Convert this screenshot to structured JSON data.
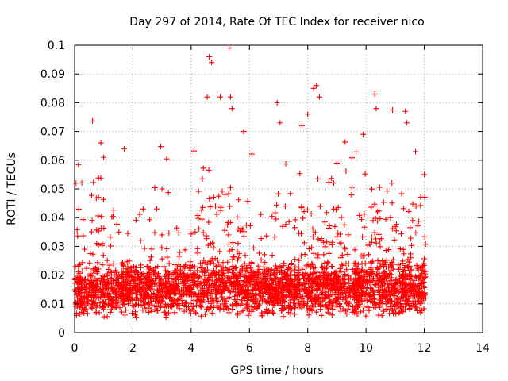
{
  "chart_data": {
    "type": "scatter",
    "title": "Day 297 of 2014, Rate Of TEC Index for receiver nico",
    "xlabel": "GPS time / hours",
    "ylabel": "ROTI / TECUs",
    "xlim": [
      0,
      14
    ],
    "ylim": [
      0,
      0.1
    ],
    "xticks": [
      0,
      2,
      4,
      6,
      8,
      10,
      12,
      14
    ],
    "yticks": [
      0,
      0.01,
      0.02,
      0.03,
      0.04,
      0.05,
      0.06,
      0.07,
      0.08,
      0.09,
      0.1
    ],
    "xtick_labels": [
      "0",
      "2",
      "4",
      "6",
      "8",
      "10",
      "12",
      "14"
    ],
    "ytick_labels": [
      "0",
      "0.01",
      "0.02",
      "0.03",
      "0.04",
      "0.05",
      "0.06",
      "0.07",
      "0.08",
      "0.09",
      "0.1"
    ],
    "grid": true,
    "marker": "+",
    "color": "#ff0000",
    "series": [
      {
        "name": "ROTI",
        "x_range": [
          0,
          12.05
        ],
        "bulk_range": [
          0.005,
          0.025
        ],
        "notable_points": [
          {
            "x": 0.05,
            "y": 0.052
          },
          {
            "x": 0.9,
            "y": 0.066
          },
          {
            "x": 1.0,
            "y": 0.061
          },
          {
            "x": 1.7,
            "y": 0.064
          },
          {
            "x": 2.35,
            "y": 0.043
          },
          {
            "x": 3.0,
            "y": 0.05
          },
          {
            "x": 4.55,
            "y": 0.082
          },
          {
            "x": 4.62,
            "y": 0.096
          },
          {
            "x": 4.7,
            "y": 0.094
          },
          {
            "x": 5.0,
            "y": 0.082
          },
          {
            "x": 5.3,
            "y": 0.099
          },
          {
            "x": 5.35,
            "y": 0.082
          },
          {
            "x": 5.4,
            "y": 0.078
          },
          {
            "x": 5.8,
            "y": 0.07
          },
          {
            "x": 6.95,
            "y": 0.08
          },
          {
            "x": 7.05,
            "y": 0.073
          },
          {
            "x": 7.8,
            "y": 0.072
          },
          {
            "x": 8.2,
            "y": 0.085
          },
          {
            "x": 8.3,
            "y": 0.086
          },
          {
            "x": 8.4,
            "y": 0.082
          },
          {
            "x": 8.0,
            "y": 0.076
          },
          {
            "x": 9.0,
            "y": 0.059
          },
          {
            "x": 9.9,
            "y": 0.069
          },
          {
            "x": 10.3,
            "y": 0.083
          },
          {
            "x": 10.35,
            "y": 0.078
          },
          {
            "x": 11.35,
            "y": 0.077
          },
          {
            "x": 11.4,
            "y": 0.073
          },
          {
            "x": 11.7,
            "y": 0.063
          },
          {
            "x": 12.0,
            "y": 0.055
          }
        ]
      }
    ]
  }
}
